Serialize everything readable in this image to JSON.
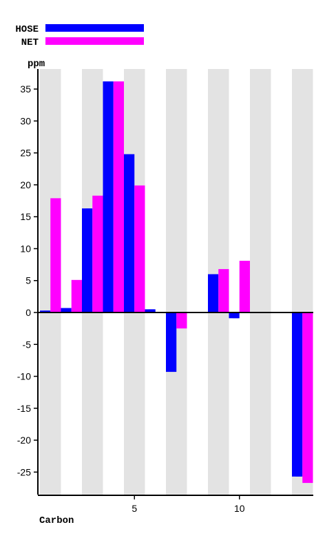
{
  "chart_data": {
    "type": "bar",
    "xlabel": "Carbon",
    "ylabel": "ppm",
    "x": [
      1,
      2,
      3,
      4,
      5,
      6,
      7,
      8,
      9,
      10,
      11,
      12,
      13
    ],
    "xticks": [
      5,
      10
    ],
    "xlim": [
      0.5,
      13.5
    ],
    "ylim": [
      -29,
      39
    ],
    "yticks": [
      -25,
      -20,
      -15,
      -10,
      -5,
      0,
      5,
      10,
      15,
      20,
      25,
      30,
      35
    ],
    "grid": "alternating vertical bands",
    "legend_position": "top-left",
    "series": [
      {
        "name": "HOSE",
        "color": "#0000ff",
        "values": [
          0.3,
          0.7,
          16.3,
          36.2,
          24.8,
          0.5,
          -9.3,
          null,
          6.0,
          -0.9,
          null,
          null,
          -25.7
        ]
      },
      {
        "name": "NET",
        "color": "#ff00ff",
        "values": [
          17.9,
          5.1,
          18.3,
          36.2,
          19.9,
          null,
          -2.5,
          null,
          6.8,
          8.1,
          null,
          null,
          -26.7
        ]
      }
    ]
  }
}
